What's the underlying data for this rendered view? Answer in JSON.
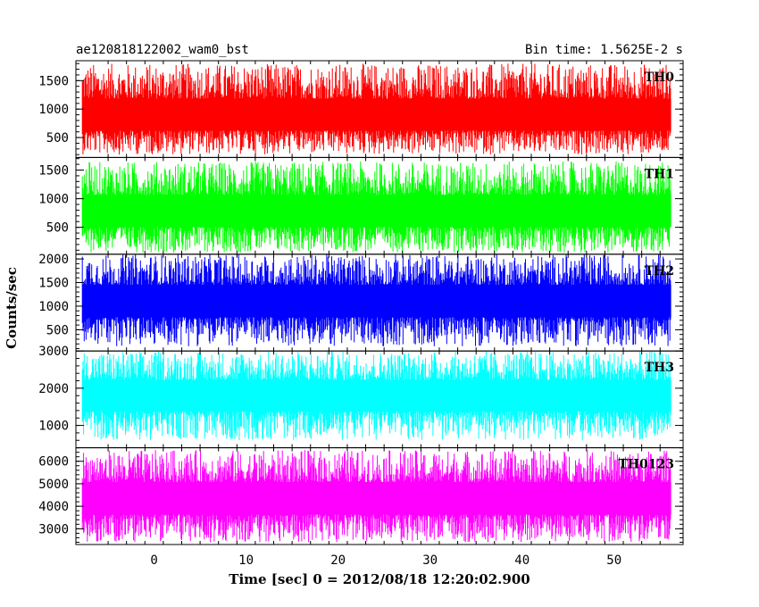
{
  "chart_data": {
    "type": "line",
    "title_left": "ae120818122002_wam0_bst",
    "title_right": "Bin time: 1.5625E-2 s",
    "xlabel": "Time [sec] 0 = 2012/08/18 12:20:02.900",
    "ylabel": "Counts/sec",
    "xlim": [
      -8.5,
      57.5
    ],
    "data_x_range": [
      -7.8,
      56.2
    ],
    "x_ticks": [
      0,
      10,
      20,
      30,
      40,
      50
    ],
    "x_tick_labels": [
      "0",
      "10",
      "20",
      "30",
      "40",
      "50"
    ],
    "panels": [
      {
        "name": "TH0",
        "color": "#ff0000",
        "ylim": [
          150,
          1850
        ],
        "y_ticks": [
          500,
          1000,
          1500
        ],
        "y_tick_labels": [
          "500",
          "1000",
          "1500"
        ],
        "data_center": 850,
        "data_spread_min": 200,
        "data_spread_max": 1800
      },
      {
        "name": "TH1",
        "color": "#00ff00",
        "ylim": [
          30,
          1720
        ],
        "y_ticks": [
          500,
          1000,
          1500
        ],
        "y_tick_labels": [
          "500",
          "1000",
          "1500"
        ],
        "data_center": 750,
        "data_spread_min": 60,
        "data_spread_max": 1650
      },
      {
        "name": "TH2",
        "color": "#0000ff",
        "ylim": [
          50,
          2100
        ],
        "y_ticks": [
          500,
          1000,
          1500,
          2000
        ],
        "y_tick_labels": [
          "500",
          "1000",
          "1500",
          "2000"
        ],
        "data_center": 1100,
        "data_spread_min": 150,
        "data_spread_max": 2100
      },
      {
        "name": "TH3",
        "color": "#00ffff",
        "ylim": [
          400,
          3000
        ],
        "y_ticks": [
          1000,
          2000,
          3000
        ],
        "y_tick_labels": [
          "1000",
          "2000",
          "3000"
        ],
        "data_center": 1800,
        "data_spread_min": 600,
        "data_spread_max": 3000
      },
      {
        "name": "TH0123",
        "color": "#ff00ff",
        "ylim": [
          2300,
          6600
        ],
        "y_ticks": [
          3000,
          4000,
          5000,
          6000
        ],
        "y_tick_labels": [
          "3000",
          "4000",
          "5000",
          "6000"
        ],
        "data_center": 4300,
        "data_spread_min": 2400,
        "data_spread_max": 6500
      }
    ]
  }
}
